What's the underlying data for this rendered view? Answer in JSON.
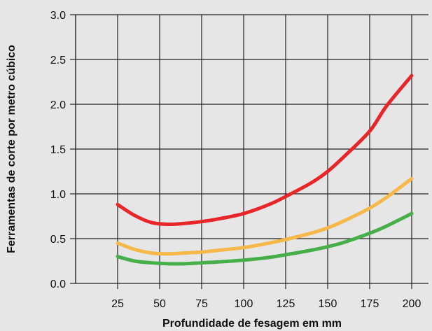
{
  "chart_data": {
    "type": "line",
    "xlabel": "Profundidade de fesagem em mm",
    "ylabel": "Ferramentas de corte por metro cúbico",
    "xlim": [
      0,
      210
    ],
    "ylim": [
      0,
      3.0
    ],
    "x_ticks": [
      25,
      50,
      75,
      100,
      125,
      150,
      175,
      200
    ],
    "y_ticks": [
      0.0,
      0.5,
      1.0,
      1.5,
      2.0,
      2.5,
      3.0
    ],
    "y_tick_labels": [
      "0.0",
      "0.5",
      "1.0",
      "1.5",
      "2.0",
      "2.5",
      "3.0"
    ],
    "grid": true,
    "background": "#e6e6e6",
    "series": [
      {
        "color": "#e8262a",
        "x": [
          25,
          35,
          45,
          55,
          65,
          75,
          85,
          100,
          115,
          125,
          140,
          150,
          160,
          175,
          185,
          200
        ],
        "y": [
          0.88,
          0.76,
          0.68,
          0.66,
          0.67,
          0.69,
          0.72,
          0.78,
          0.88,
          0.97,
          1.12,
          1.25,
          1.42,
          1.7,
          1.98,
          2.32
        ]
      },
      {
        "color": "#f6b849",
        "x": [
          25,
          35,
          45,
          55,
          65,
          75,
          85,
          100,
          115,
          125,
          140,
          150,
          160,
          175,
          185,
          200
        ],
        "y": [
          0.45,
          0.38,
          0.34,
          0.33,
          0.34,
          0.35,
          0.37,
          0.4,
          0.45,
          0.49,
          0.56,
          0.62,
          0.7,
          0.84,
          0.96,
          1.17
        ]
      },
      {
        "color": "#46af4a",
        "x": [
          25,
          35,
          45,
          55,
          65,
          75,
          85,
          100,
          115,
          125,
          140,
          150,
          160,
          175,
          185,
          200
        ],
        "y": [
          0.3,
          0.25,
          0.23,
          0.22,
          0.22,
          0.23,
          0.24,
          0.26,
          0.29,
          0.32,
          0.37,
          0.41,
          0.46,
          0.56,
          0.64,
          0.78
        ]
      }
    ]
  }
}
